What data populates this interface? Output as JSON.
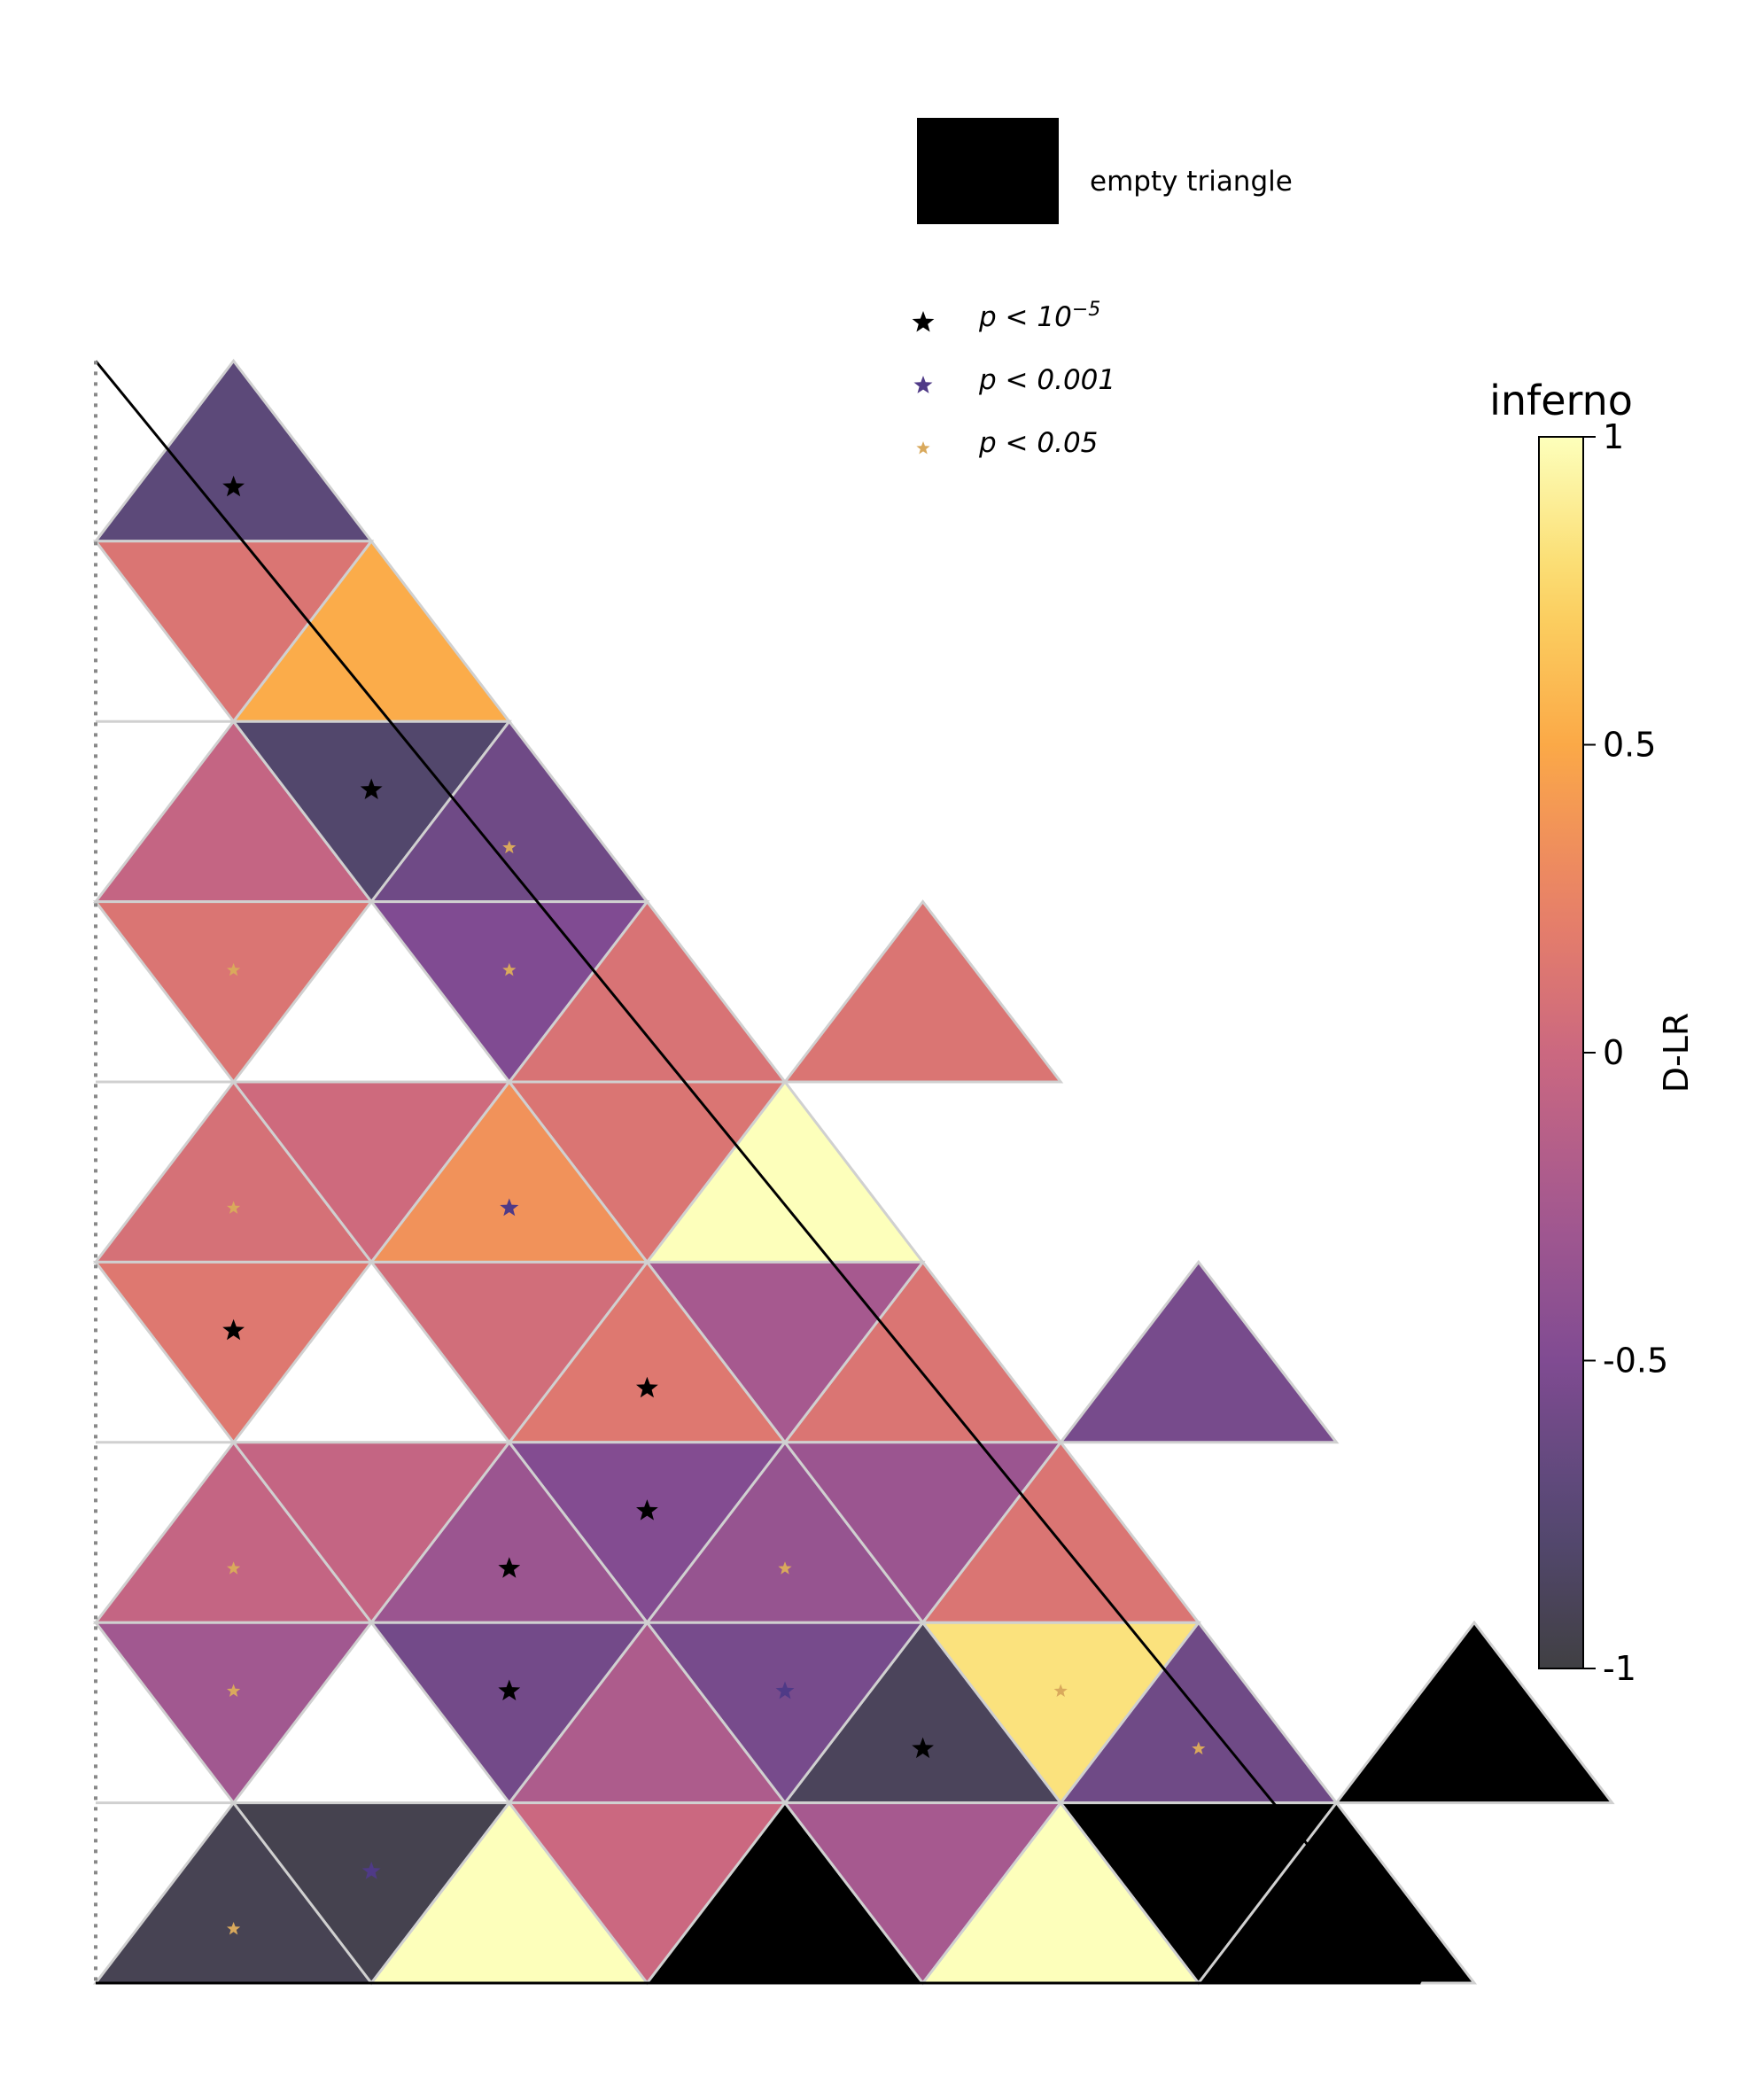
{
  "chart_data": {
    "type": "heatmap",
    "subtype": "triangular-grid",
    "rows": 9,
    "rows_order": "top-to-bottom",
    "cells": [
      {
        "row": 0,
        "index": 0,
        "orientation": "up",
        "value": -0.72,
        "sig": "p1e-5"
      },
      {
        "row": 1,
        "index": 0,
        "orientation": "down",
        "value": 0.12,
        "sig": null
      },
      {
        "row": 1,
        "index": 0,
        "orientation": "up",
        "value": 0.52,
        "sig": null
      },
      {
        "row": 2,
        "index": 0,
        "orientation": "up",
        "value": -0.05,
        "sig": null
      },
      {
        "row": 2,
        "index": 0,
        "orientation": "down",
        "value": -0.8,
        "sig": "p1e-5"
      },
      {
        "row": 2,
        "index": 1,
        "orientation": "up",
        "value": -0.6,
        "sig": "p0.05"
      },
      {
        "row": 3,
        "index": 0,
        "orientation": "down",
        "value": 0.12,
        "sig": "p0.05"
      },
      {
        "row": 3,
        "index": 1,
        "orientation": "up",
        "value": 0.1,
        "sig": null
      },
      {
        "row": 3,
        "index": 1,
        "orientation": "down",
        "value": -0.5,
        "sig": "p0.05"
      },
      {
        "row": 3,
        "index": 2,
        "orientation": "up",
        "value": 0.12,
        "sig": null
      },
      {
        "row": 4,
        "index": 0,
        "orientation": "up",
        "value": 0.08,
        "sig": "p0.05"
      },
      {
        "row": 4,
        "index": 0,
        "orientation": "down",
        "value": 0.02,
        "sig": null
      },
      {
        "row": 4,
        "index": 1,
        "orientation": "up",
        "value": 0.35,
        "sig": "p0.001"
      },
      {
        "row": 4,
        "index": 1,
        "orientation": "down",
        "value": 0.12,
        "sig": null
      },
      {
        "row": 4,
        "index": 2,
        "orientation": "up",
        "value": 1.0,
        "sig": null
      },
      {
        "row": 5,
        "index": 0,
        "orientation": "down",
        "value": 0.15,
        "sig": "p1e-5"
      },
      {
        "row": 5,
        "index": 1,
        "orientation": "up",
        "value": 0.15,
        "sig": "p1e-5"
      },
      {
        "row": 5,
        "index": 1,
        "orientation": "down",
        "value": 0.05,
        "sig": null
      },
      {
        "row": 5,
        "index": 2,
        "orientation": "up",
        "value": 0.12,
        "sig": null
      },
      {
        "row": 5,
        "index": 2,
        "orientation": "down",
        "value": -0.25,
        "sig": null
      },
      {
        "row": 5,
        "index": 3,
        "orientation": "up",
        "value": -0.55,
        "sig": null
      },
      {
        "row": 6,
        "index": 0,
        "orientation": "up",
        "value": -0.05,
        "sig": "p0.05"
      },
      {
        "row": 6,
        "index": 0,
        "orientation": "down",
        "value": -0.05,
        "sig": null
      },
      {
        "row": 6,
        "index": 1,
        "orientation": "up",
        "value": -0.32,
        "sig": "p1e-5"
      },
      {
        "row": 6,
        "index": 1,
        "orientation": "down",
        "value": -0.48,
        "sig": "p1e-5"
      },
      {
        "row": 6,
        "index": 2,
        "orientation": "up",
        "value": -0.35,
        "sig": "p0.05"
      },
      {
        "row": 6,
        "index": 2,
        "orientation": "down",
        "value": -0.32,
        "sig": null
      },
      {
        "row": 6,
        "index": 3,
        "orientation": "up",
        "value": 0.12,
        "sig": null
      },
      {
        "row": 7,
        "index": 0,
        "orientation": "down",
        "value": -0.28,
        "sig": "p0.05"
      },
      {
        "row": 7,
        "index": 1,
        "orientation": "up",
        "value": -0.2,
        "sig": null
      },
      {
        "row": 7,
        "index": 1,
        "orientation": "down",
        "value": -0.58,
        "sig": "p1e-5"
      },
      {
        "row": 7,
        "index": 2,
        "orientation": "up",
        "value": -0.88,
        "sig": "p1e-5"
      },
      {
        "row": 7,
        "index": 2,
        "orientation": "down",
        "value": -0.55,
        "sig": "p0.001"
      },
      {
        "row": 7,
        "index": 3,
        "orientation": "up",
        "value": -0.6,
        "sig": "p0.05"
      },
      {
        "row": 7,
        "index": 3,
        "orientation": "down",
        "value": 0.82,
        "sig": "p0.05"
      },
      {
        "row": 7,
        "index": 4,
        "orientation": "up",
        "value": null,
        "sig": null
      },
      {
        "row": 8,
        "index": 0,
        "orientation": "up",
        "value": -0.92,
        "sig": "p0.05"
      },
      {
        "row": 8,
        "index": 0,
        "orientation": "down",
        "value": -0.94,
        "sig": "p0.001"
      },
      {
        "row": 8,
        "index": 1,
        "orientation": "up",
        "value": 1.0,
        "sig": null
      },
      {
        "row": 8,
        "index": 1,
        "orientation": "down",
        "value": 0.0,
        "sig": null
      },
      {
        "row": 8,
        "index": 2,
        "orientation": "up",
        "value": null,
        "sig": null
      },
      {
        "row": 8,
        "index": 2,
        "orientation": "down",
        "value": -0.25,
        "sig": null
      },
      {
        "row": 8,
        "index": 3,
        "orientation": "up",
        "value": 1.0,
        "sig": null
      },
      {
        "row": 8,
        "index": 3,
        "orientation": "down",
        "value": null,
        "sig": null
      },
      {
        "row": 8,
        "index": 4,
        "orientation": "up",
        "value": null,
        "sig": null
      }
    ],
    "colorbar": {
      "title": "inferno",
      "label": "D-LR",
      "vmin": -1,
      "vmax": 1,
      "ticks": [
        1,
        0.5,
        0,
        -0.5,
        -1
      ],
      "tick_labels": [
        "1",
        "0.5",
        "0",
        "-0.5",
        "-1"
      ],
      "colormap": "inferno",
      "alpha": 0.75
    },
    "legend": {
      "empty_label": "empty triangle",
      "empty_color": "#000000",
      "sig_levels": [
        {
          "key": "p1e-5",
          "label_prefix": "p < 10",
          "label_sup": "−5",
          "color": "#000000",
          "star_size": "large"
        },
        {
          "key": "p0.001",
          "label_prefix": "p < 0.001",
          "label_sup": "",
          "color": "#4f3a87",
          "star_size": "medium"
        },
        {
          "key": "p0.05",
          "label_prefix": "p < 0.05",
          "label_sup": "",
          "color": "#d9a95c",
          "star_size": "small"
        }
      ]
    },
    "colors": {
      "edge": "#d0d0d0",
      "hypotenuse": "#000000",
      "axis": "#000000",
      "left_axis": "#888888"
    }
  }
}
